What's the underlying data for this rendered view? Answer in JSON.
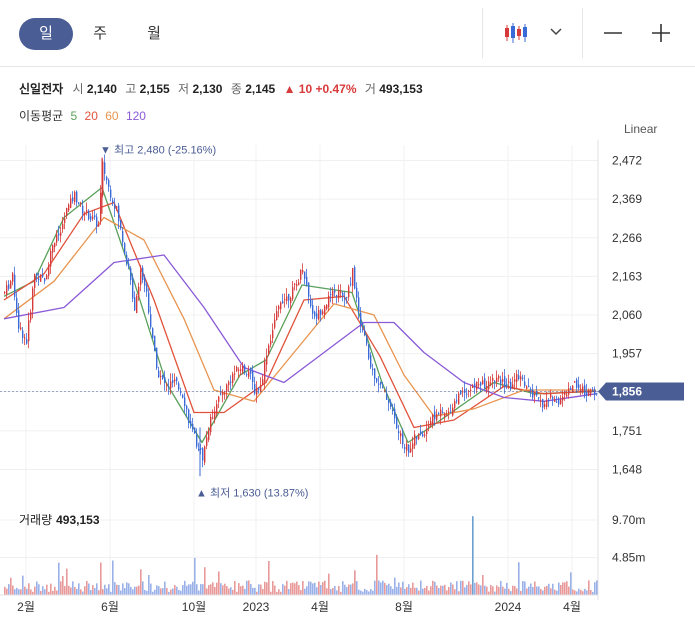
{
  "tabs": [
    "일",
    "주",
    "월"
  ],
  "quote": {
    "name": "신일전자",
    "open_label": "시",
    "open": "2,140",
    "high_label": "고",
    "high": "2,155",
    "low_label": "저",
    "low": "2,130",
    "close_label": "종",
    "close": "2,145",
    "change": "▲ 10 +0.47%",
    "volume_label": "거",
    "volume": "493,153"
  },
  "moving_average": {
    "label": "이동평균",
    "periods": [
      {
        "text": "5",
        "color": "#5aa05a"
      },
      {
        "text": "20",
        "color": "#e0523a"
      },
      {
        "text": "60",
        "color": "#e89550"
      },
      {
        "text": "120",
        "color": "#8a5ad6"
      }
    ]
  },
  "scale_label": "Linear",
  "volume_title": {
    "label": "거래량",
    "value": "493,153"
  },
  "icons": {
    "chart_type": "candlestick-icon",
    "dropdown": "chevron-down-icon",
    "zoom_out": "minus-icon",
    "zoom_in": "plus-icon"
  },
  "chart_data": {
    "type": "candlestick",
    "y_ticks": [
      "2,472",
      "2,369",
      "2,266",
      "2,163",
      "2,060",
      "1,957",
      "1,856",
      "1,751",
      "1,648"
    ],
    "y_range": [
      1620,
      2500
    ],
    "x_ticks": [
      "2월",
      "6월",
      "10월",
      "2023",
      "4월",
      "8월",
      "2024",
      "4월"
    ],
    "current_price_label": "1,856",
    "current_price": 1856,
    "max_annotation": "▼ 최고 2,480 (-25.16%)",
    "min_annotation": "▲ 최저 1,630 (13.87%)",
    "max_value": 2480,
    "min_value": 1630,
    "volume_ticks": [
      "9.70m",
      "4.85m"
    ],
    "volume_max": 11000000,
    "series": [
      {
        "name": "5",
        "color": "#5aa05a"
      },
      {
        "name": "20",
        "color": "#e0523a"
      },
      {
        "name": "60",
        "color": "#e89550"
      },
      {
        "name": "120",
        "color": "#8a5ad6"
      }
    ],
    "up_color": "#d73a3a",
    "down_color": "#3a6ad7",
    "price_path": [
      [
        0,
        2120
      ],
      [
        8,
        2160
      ],
      [
        14,
        2030
      ],
      [
        22,
        1990
      ],
      [
        30,
        2170
      ],
      [
        40,
        2150
      ],
      [
        48,
        2250
      ],
      [
        56,
        2280
      ],
      [
        62,
        2340
      ],
      [
        70,
        2380
      ],
      [
        78,
        2340
      ],
      [
        86,
        2320
      ],
      [
        94,
        2300
      ],
      [
        98,
        2460
      ],
      [
        104,
        2400
      ],
      [
        112,
        2340
      ],
      [
        118,
        2260
      ],
      [
        124,
        2180
      ],
      [
        130,
        2080
      ],
      [
        136,
        2180
      ],
      [
        142,
        2120
      ],
      [
        148,
        1990
      ],
      [
        154,
        1900
      ],
      [
        162,
        1870
      ],
      [
        170,
        1880
      ],
      [
        178,
        1850
      ],
      [
        186,
        1760
      ],
      [
        192,
        1720
      ],
      [
        198,
        1680
      ],
      [
        204,
        1760
      ],
      [
        212,
        1830
      ],
      [
        220,
        1860
      ],
      [
        228,
        1900
      ],
      [
        236,
        1920
      ],
      [
        244,
        1910
      ],
      [
        250,
        1860
      ],
      [
        256,
        1870
      ],
      [
        262,
        1960
      ],
      [
        268,
        2020
      ],
      [
        276,
        2100
      ],
      [
        284,
        2110
      ],
      [
        292,
        2140
      ],
      [
        298,
        2190
      ],
      [
        304,
        2110
      ],
      [
        310,
        2050
      ],
      [
        318,
        2080
      ],
      [
        326,
        2110
      ],
      [
        334,
        2120
      ],
      [
        342,
        2100
      ],
      [
        348,
        2180
      ],
      [
        354,
        2060
      ],
      [
        360,
        2000
      ],
      [
        366,
        1920
      ],
      [
        372,
        1890
      ],
      [
        378,
        1860
      ],
      [
        386,
        1820
      ],
      [
        392,
        1760
      ],
      [
        398,
        1720
      ],
      [
        404,
        1700
      ],
      [
        410,
        1730
      ],
      [
        418,
        1740
      ],
      [
        426,
        1780
      ],
      [
        434,
        1800
      ],
      [
        442,
        1790
      ],
      [
        450,
        1830
      ],
      [
        458,
        1860
      ],
      [
        466,
        1860
      ],
      [
        474,
        1880
      ],
      [
        482,
        1870
      ],
      [
        490,
        1890
      ],
      [
        498,
        1880
      ],
      [
        506,
        1870
      ],
      [
        514,
        1900
      ],
      [
        522,
        1870
      ],
      [
        530,
        1840
      ],
      [
        538,
        1820
      ],
      [
        546,
        1840
      ],
      [
        554,
        1830
      ],
      [
        562,
        1850
      ],
      [
        570,
        1880
      ],
      [
        578,
        1860
      ],
      [
        586,
        1850
      ],
      [
        592,
        1856
      ]
    ],
    "ma_paths": {
      "5": [
        [
          0,
          2110
        ],
        [
          30,
          2150
        ],
        [
          60,
          2320
        ],
        [
          98,
          2400
        ],
        [
          130,
          2150
        ],
        [
          162,
          1880
        ],
        [
          198,
          1720
        ],
        [
          236,
          1900
        ],
        [
          262,
          1940
        ],
        [
          298,
          2140
        ],
        [
          348,
          2120
        ],
        [
          378,
          1880
        ],
        [
          404,
          1720
        ],
        [
          442,
          1790
        ],
        [
          490,
          1880
        ],
        [
          530,
          1850
        ],
        [
          592,
          1856
        ]
      ],
      "20": [
        [
          0,
          2100
        ],
        [
          40,
          2170
        ],
        [
          80,
          2330
        ],
        [
          110,
          2360
        ],
        [
          150,
          2100
        ],
        [
          190,
          1800
        ],
        [
          220,
          1800
        ],
        [
          262,
          1880
        ],
        [
          300,
          2100
        ],
        [
          340,
          2110
        ],
        [
          376,
          1950
        ],
        [
          410,
          1760
        ],
        [
          450,
          1780
        ],
        [
          500,
          1870
        ],
        [
          540,
          1850
        ],
        [
          592,
          1858
        ]
      ],
      "60": [
        [
          0,
          2050
        ],
        [
          50,
          2150
        ],
        [
          100,
          2320
        ],
        [
          140,
          2260
        ],
        [
          180,
          2050
        ],
        [
          210,
          1860
        ],
        [
          250,
          1830
        ],
        [
          290,
          1960
        ],
        [
          330,
          2090
        ],
        [
          370,
          2060
        ],
        [
          400,
          1900
        ],
        [
          430,
          1790
        ],
        [
          470,
          1810
        ],
        [
          520,
          1860
        ],
        [
          592,
          1860
        ]
      ],
      "120": [
        [
          0,
          2050
        ],
        [
          60,
          2080
        ],
        [
          110,
          2200
        ],
        [
          160,
          2220
        ],
        [
          200,
          2080
        ],
        [
          240,
          1920
        ],
        [
          280,
          1880
        ],
        [
          320,
          1960
        ],
        [
          360,
          2040
        ],
        [
          390,
          2040
        ],
        [
          420,
          1960
        ],
        [
          460,
          1880
        ],
        [
          500,
          1840
        ],
        [
          540,
          1830
        ],
        [
          592,
          1850
        ]
      ]
    }
  }
}
